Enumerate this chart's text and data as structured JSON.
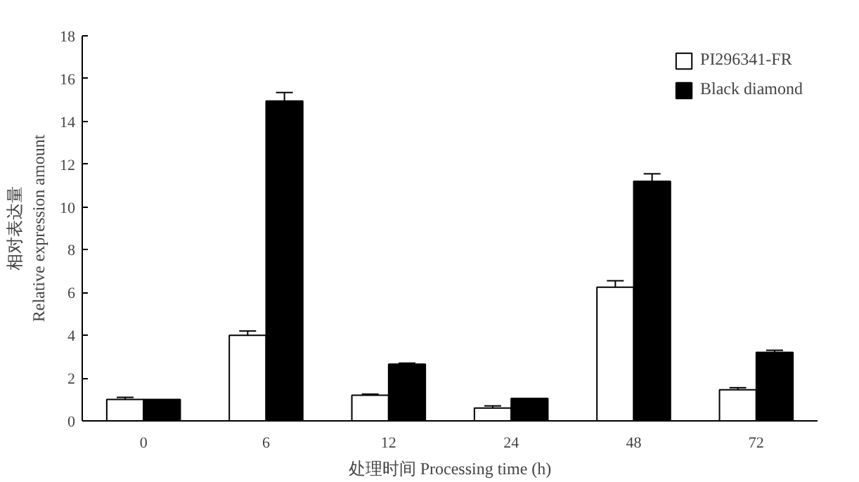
{
  "chart_data": {
    "type": "bar",
    "xlabel": "处理时间 Processing time (h)",
    "ylabel": "相对表达量\nRelative expression amount",
    "categories": [
      "0",
      "6",
      "12",
      "24",
      "48",
      "72"
    ],
    "series": [
      {
        "name": "PI296341-FR",
        "color": "#ffffff",
        "values": [
          1.0,
          4.0,
          1.2,
          0.6,
          6.25,
          1.45
        ],
        "errors": [
          0.1,
          0.2,
          0.05,
          0.1,
          0.3,
          0.1
        ]
      },
      {
        "name": "Black diamond",
        "color": "#000000",
        "values": [
          1.0,
          14.95,
          2.65,
          1.05,
          11.2,
          3.2
        ],
        "errors": [
          null,
          0.4,
          0.05,
          null,
          0.35,
          0.1
        ]
      }
    ],
    "ylim": [
      0,
      18
    ],
    "yticks": [
      0,
      2,
      4,
      6,
      8,
      10,
      12,
      14,
      16,
      18
    ],
    "grid": false,
    "legend": "top right"
  }
}
